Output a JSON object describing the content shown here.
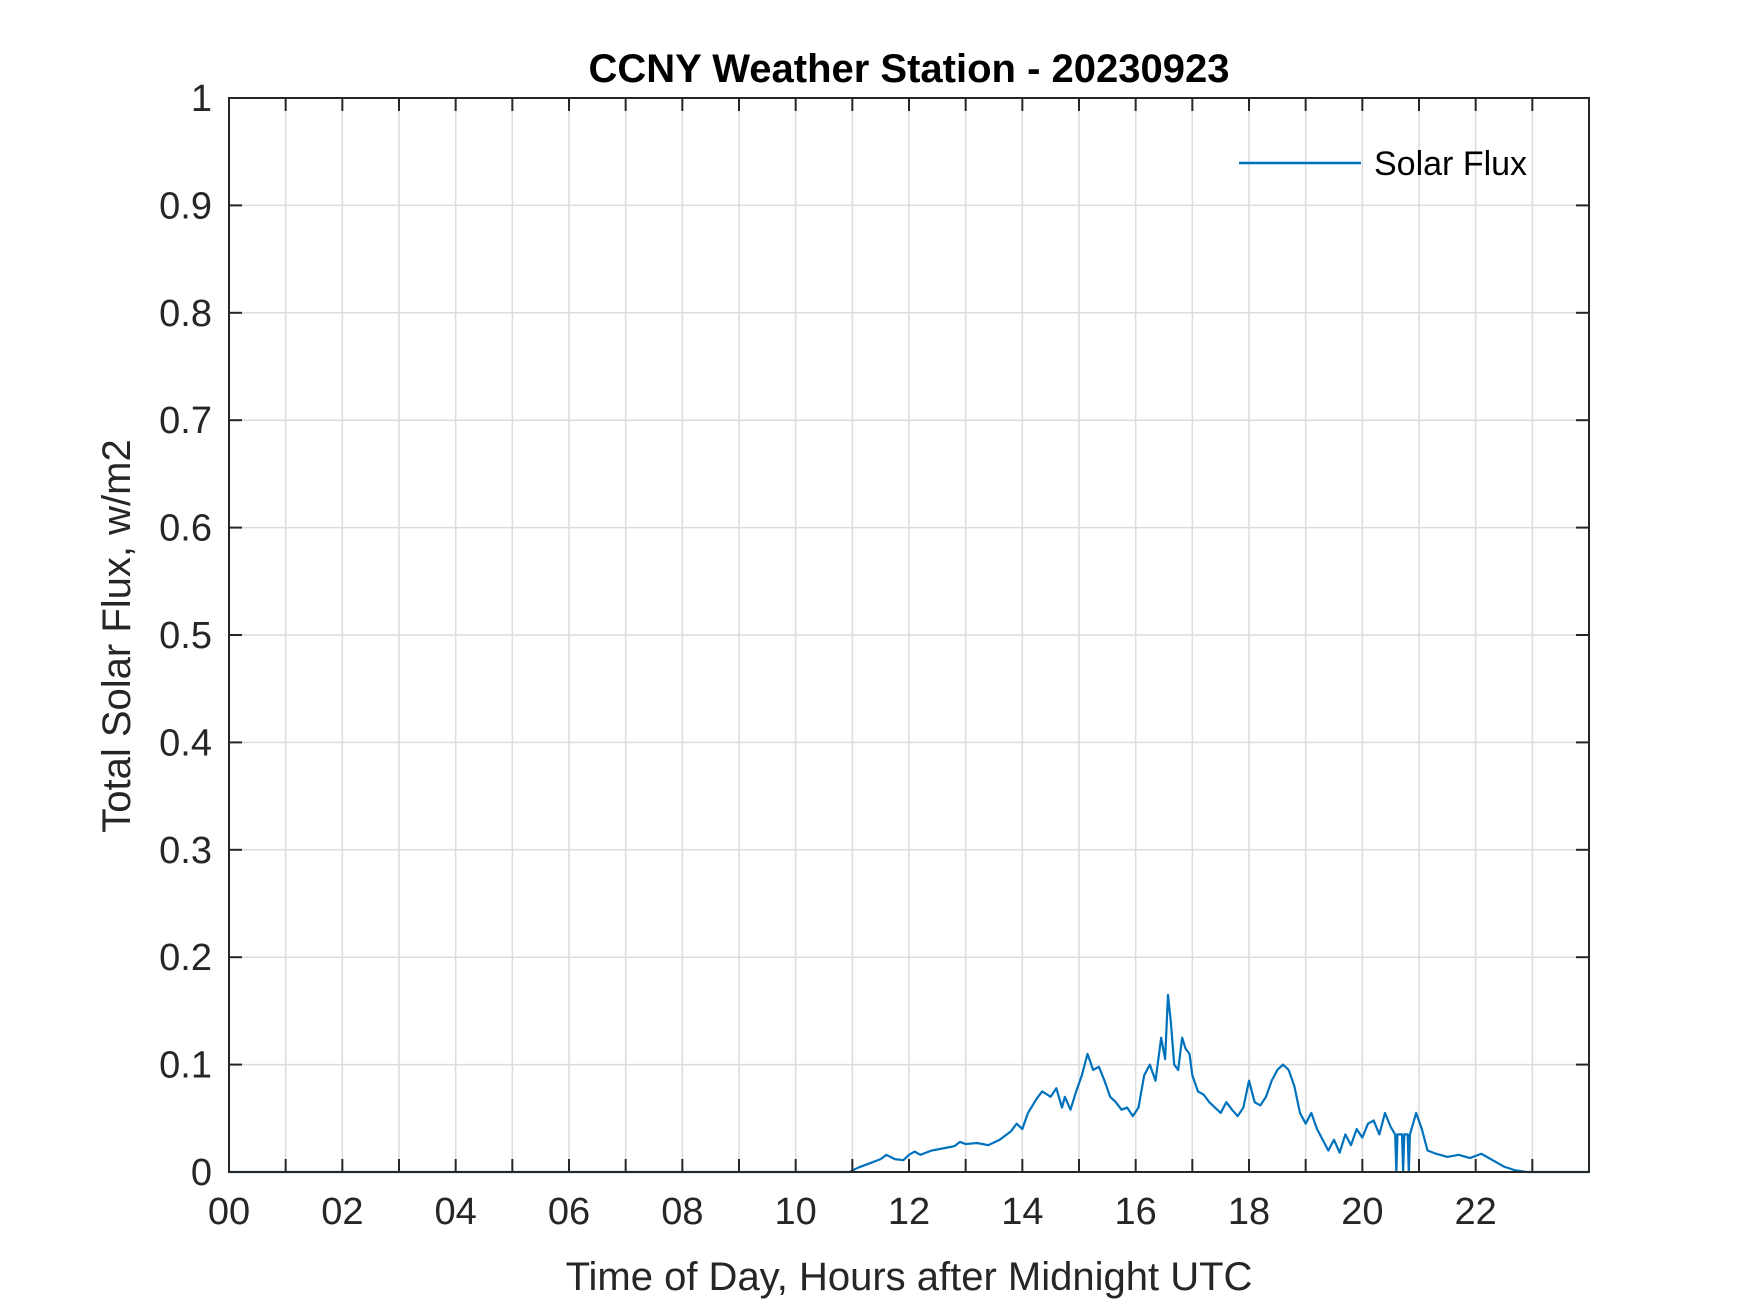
{
  "chart_data": {
    "type": "line",
    "title": "CCNY Weather Station - 20230923",
    "xlabel": "Time of Day, Hours after Midnight UTC",
    "ylabel": "Total Solar Flux, w/m2",
    "xlim": [
      0,
      24
    ],
    "ylim": [
      0,
      1
    ],
    "x_ticks": [
      0,
      2,
      4,
      6,
      8,
      10,
      12,
      14,
      16,
      18,
      20,
      22
    ],
    "x_tick_labels": [
      "00",
      "02",
      "04",
      "06",
      "08",
      "10",
      "12",
      "14",
      "16",
      "18",
      "20",
      "22"
    ],
    "x_minor_grid_step": 1,
    "y_ticks": [
      0,
      0.1,
      0.2,
      0.3,
      0.4,
      0.5,
      0.6,
      0.7,
      0.8,
      0.9,
      1
    ],
    "y_tick_labels": [
      "0",
      "0.1",
      "0.2",
      "0.3",
      "0.4",
      "0.5",
      "0.6",
      "0.7",
      "0.8",
      "0.9",
      "1"
    ],
    "grid": true,
    "legend": {
      "position": "top-right",
      "entries": [
        "Solar Flux"
      ]
    },
    "series": [
      {
        "name": "Solar Flux",
        "color": "#0072BD",
        "x": [
          0,
          10.95,
          11.1,
          11.3,
          11.5,
          11.6,
          11.75,
          11.9,
          12.0,
          12.1,
          12.2,
          12.4,
          12.6,
          12.8,
          12.9,
          13.0,
          13.2,
          13.4,
          13.6,
          13.8,
          13.9,
          14.0,
          14.1,
          14.25,
          14.35,
          14.5,
          14.6,
          14.7,
          14.75,
          14.85,
          14.95,
          15.05,
          15.15,
          15.25,
          15.35,
          15.45,
          15.55,
          15.65,
          15.75,
          15.85,
          15.95,
          16.05,
          16.15,
          16.25,
          16.35,
          16.45,
          16.52,
          16.57,
          16.62,
          16.68,
          16.75,
          16.82,
          16.88,
          16.95,
          17.0,
          17.1,
          17.2,
          17.3,
          17.4,
          17.5,
          17.6,
          17.7,
          17.8,
          17.9,
          18.0,
          18.1,
          18.2,
          18.3,
          18.4,
          18.5,
          18.6,
          18.7,
          18.8,
          18.9,
          19.0,
          19.1,
          19.2,
          19.3,
          19.4,
          19.5,
          19.6,
          19.7,
          19.8,
          19.9,
          20.0,
          20.1,
          20.2,
          20.3,
          20.4,
          20.5,
          20.58,
          20.6,
          20.62,
          20.7,
          20.72,
          20.74,
          20.8,
          20.82,
          20.84,
          20.95,
          21.05,
          21.15,
          21.3,
          21.5,
          21.7,
          21.9,
          22.1,
          22.3,
          22.5,
          22.7,
          22.9,
          23.1,
          24
        ],
        "values": [
          0,
          0,
          0.004,
          0.008,
          0.012,
          0.016,
          0.012,
          0.011,
          0.016,
          0.019,
          0.016,
          0.02,
          0.022,
          0.024,
          0.028,
          0.026,
          0.027,
          0.025,
          0.03,
          0.038,
          0.045,
          0.04,
          0.055,
          0.068,
          0.075,
          0.07,
          0.078,
          0.06,
          0.07,
          0.058,
          0.075,
          0.09,
          0.11,
          0.095,
          0.098,
          0.085,
          0.07,
          0.065,
          0.058,
          0.06,
          0.052,
          0.06,
          0.09,
          0.1,
          0.085,
          0.125,
          0.105,
          0.165,
          0.14,
          0.1,
          0.095,
          0.125,
          0.115,
          0.11,
          0.09,
          0.075,
          0.072,
          0.065,
          0.06,
          0.055,
          0.065,
          0.058,
          0.052,
          0.06,
          0.085,
          0.065,
          0.062,
          0.07,
          0.085,
          0.095,
          0.1,
          0.095,
          0.08,
          0.055,
          0.045,
          0.055,
          0.04,
          0.03,
          0.02,
          0.03,
          0.018,
          0.035,
          0.025,
          0.04,
          0.032,
          0.045,
          0.048,
          0.035,
          0.055,
          0.042,
          0.035,
          0.0,
          0.035,
          0.035,
          0.0,
          0.035,
          0.035,
          0.0,
          0.035,
          0.055,
          0.04,
          0.02,
          0.017,
          0.014,
          0.016,
          0.013,
          0.017,
          0.011,
          0.005,
          0.0015,
          0,
          0,
          0
        ]
      }
    ]
  }
}
